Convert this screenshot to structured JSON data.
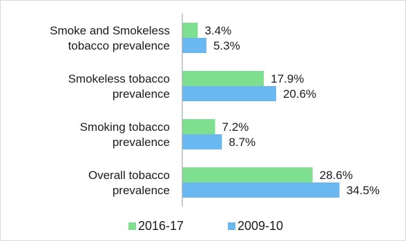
{
  "chart_data": {
    "type": "bar",
    "orientation": "horizontal",
    "categories": [
      [
        "Smoke and Smokeless",
        "tobacco prevalence"
      ],
      [
        "Smokeless tobacco",
        "prevalence"
      ],
      [
        "Smoking tobacco",
        "prevalence"
      ],
      [
        "Overall tobacco",
        "prevalence"
      ]
    ],
    "series": [
      {
        "name": "2016-17",
        "color": "#7ee08f",
        "values": [
          3.4,
          17.9,
          7.2,
          28.6
        ],
        "labels": [
          "3.4%",
          "17.9%",
          "7.2%",
          "28.6%"
        ]
      },
      {
        "name": "2009-10",
        "color": "#6ab8f2",
        "values": [
          5.3,
          20.6,
          8.7,
          34.5
        ],
        "labels": [
          "5.3%",
          "20.6%",
          "8.7%",
          "34.5%"
        ]
      }
    ],
    "xlim": [
      0,
      40
    ],
    "grid": false,
    "legend_position": "bottom"
  }
}
